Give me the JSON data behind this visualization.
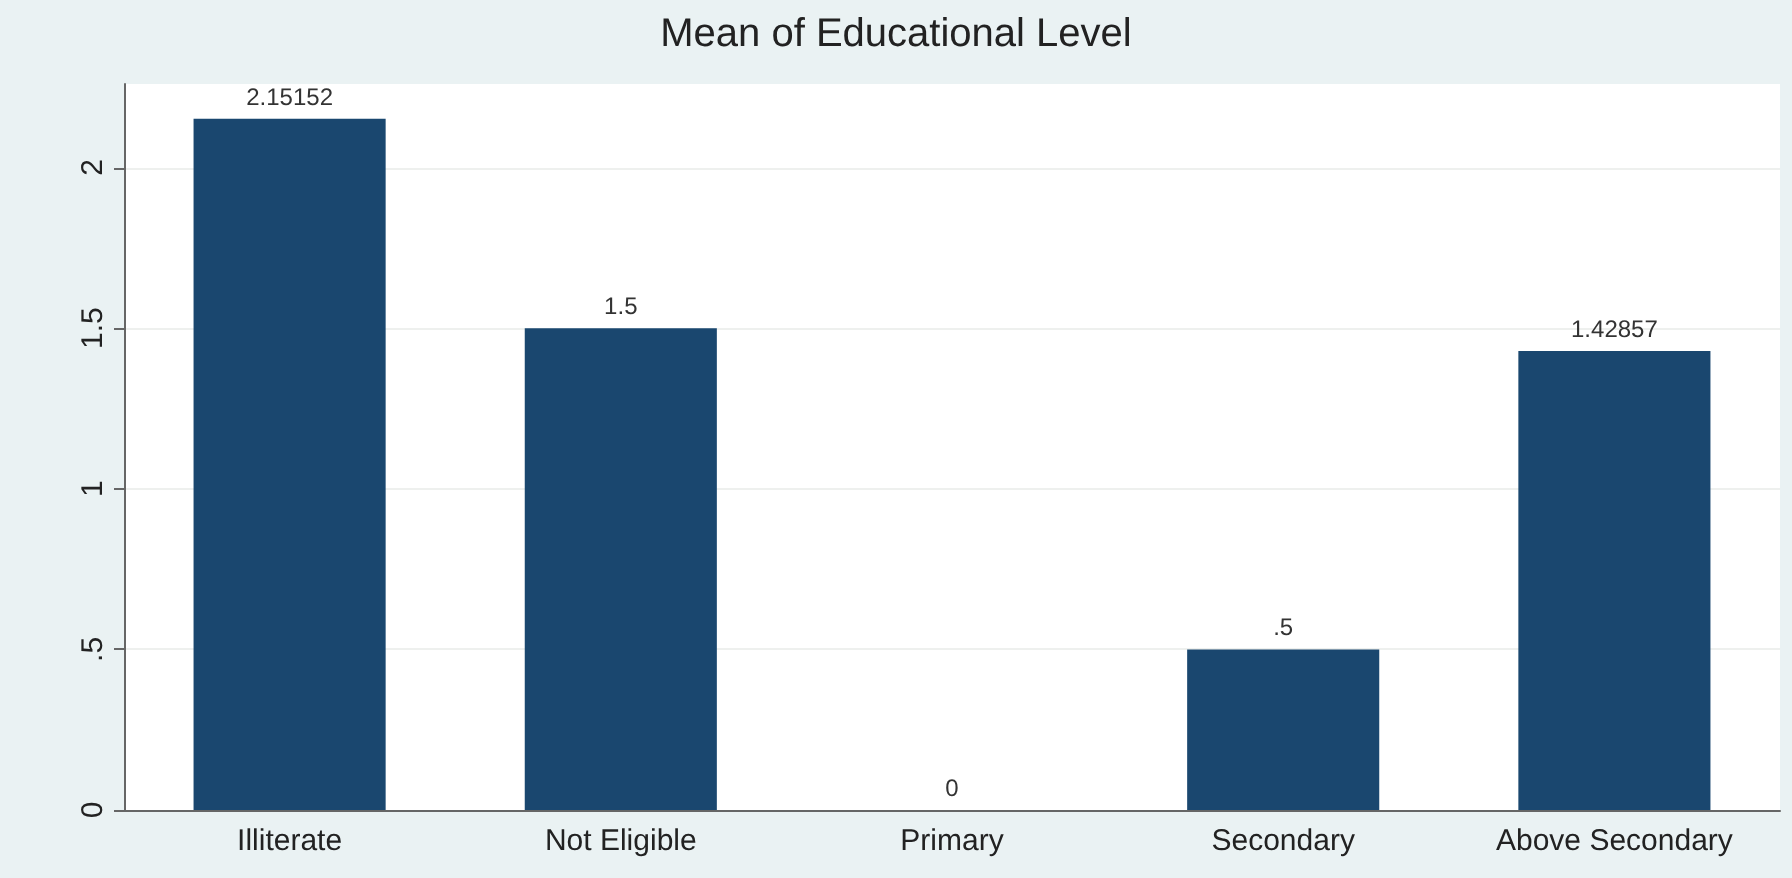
{
  "chart_data": {
    "type": "bar",
    "title": "Mean of Educational Level",
    "categories": [
      "Illiterate",
      "Not Eligible",
      "Primary",
      "Secondary",
      "Above Secondary"
    ],
    "values": [
      2.15152,
      1.5,
      0,
      0.5,
      1.42857
    ],
    "value_labels": [
      "2.15152",
      "1.5",
      "0",
      ".5",
      "1.42857"
    ],
    "color": "#1a476f",
    "ylim": [
      0,
      2.26
    ],
    "yticks": [
      0,
      {
        "value": 0.5,
        "label": ".5"
      },
      1,
      1.5,
      2
    ],
    "grid": "y"
  }
}
